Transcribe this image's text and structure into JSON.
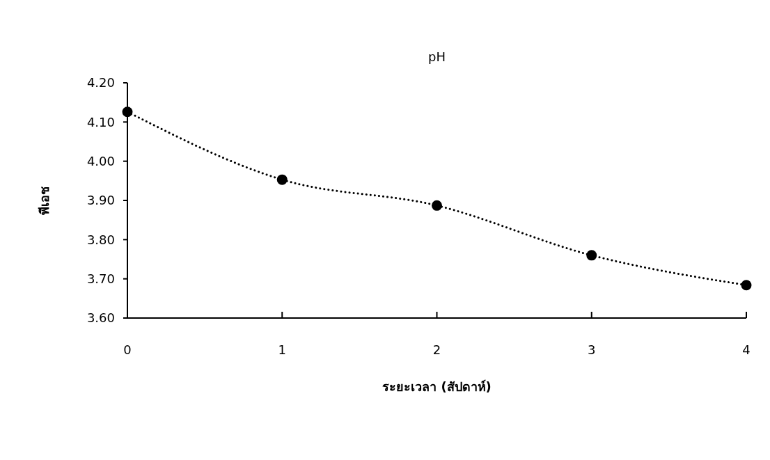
{
  "chart_data": {
    "type": "line",
    "title": "pH",
    "xlabel": "ระยะเวลา (สัปดาห์)",
    "ylabel": "พีเอช",
    "x": [
      0,
      1,
      2,
      3,
      4
    ],
    "series": [
      {
        "color": "#000000",
        "values": [
          4.126,
          3.953,
          3.887,
          3.76,
          3.684
        ]
      }
    ],
    "xlim": [
      0,
      4
    ],
    "xticks": [
      0,
      1,
      2,
      3,
      4
    ],
    "ylim": [
      3.6,
      4.2
    ],
    "yticks": [
      {
        "value": 3.6,
        "label": "3.60"
      },
      {
        "value": 3.7,
        "label": "3.70"
      },
      {
        "value": 3.8,
        "label": "3.80"
      },
      {
        "value": 3.9,
        "label": "3.90"
      },
      {
        "value": 4.0,
        "label": "4.00"
      },
      {
        "value": 4.1,
        "label": "4.10"
      },
      {
        "value": 4.2,
        "label": "4.20"
      }
    ],
    "grid": false,
    "marker": "circle",
    "line_style": "dotted"
  }
}
